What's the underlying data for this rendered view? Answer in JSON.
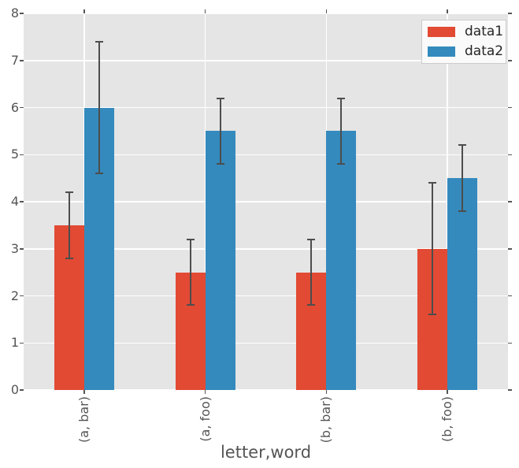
{
  "chart_data": {
    "type": "bar",
    "title": "",
    "xlabel": "letter,word",
    "ylabel": "",
    "categories": [
      "(a, bar)",
      "(a, foo)",
      "(b, bar)",
      "(b, foo)"
    ],
    "series": [
      {
        "name": "data1",
        "color": "#E24A33",
        "values": [
          3.5,
          2.5,
          2.5,
          3.0
        ],
        "errors": [
          0.7,
          0.7,
          0.7,
          1.4
        ]
      },
      {
        "name": "data2",
        "color": "#348ABD",
        "values": [
          6.0,
          5.5,
          5.5,
          4.5
        ],
        "errors": [
          1.4,
          0.7,
          0.7,
          0.7
        ]
      }
    ],
    "ylim": [
      0,
      8
    ],
    "yticks": [
      0,
      1,
      2,
      3,
      4,
      5,
      6,
      7,
      8
    ],
    "grid": true,
    "legend": {
      "position": "upper right",
      "items": [
        "data1",
        "data2"
      ]
    },
    "style": {
      "plot_background": "#E5E5E5",
      "grid_color": "#FFFFFF",
      "errorbar_color": "#4D4D4D",
      "tick_mark_color": "#555555",
      "tick_label_color": "#555555",
      "axis_label_color": "#555555",
      "legend_background": "#FAFAFA",
      "legend_border": "#CCCCCC",
      "legend_text_color": "#262626",
      "figure_background": "#FFFFFF"
    }
  }
}
